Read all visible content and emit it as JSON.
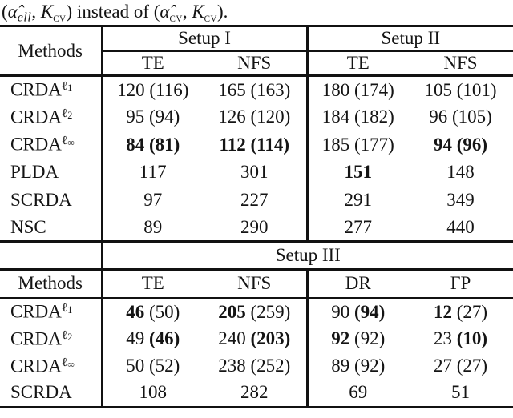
{
  "caption": {
    "segments": [
      {
        "t": "(",
        "s": "roman"
      },
      {
        "t": "α̂",
        "s": "it"
      },
      {
        "t": "ell",
        "s": "sub"
      },
      {
        "t": ", ",
        "s": "roman"
      },
      {
        "t": "K",
        "s": "it"
      },
      {
        "t": "CV",
        "s": "subsc"
      },
      {
        "t": ") instead of (",
        "s": "roman"
      },
      {
        "t": "α̂",
        "s": "it"
      },
      {
        "t": "CV",
        "s": "subsc"
      },
      {
        "t": ", ",
        "s": "roman"
      },
      {
        "t": "K",
        "s": "it"
      },
      {
        "t": "CV",
        "s": "subsc"
      },
      {
        "t": ").",
        "s": "roman"
      }
    ]
  },
  "table1": {
    "methods_label": "Methods",
    "groups": [
      {
        "label": "Setup I",
        "cols": [
          "TE",
          "NFS"
        ]
      },
      {
        "label": "Setup II",
        "cols": [
          "TE",
          "NFS"
        ]
      }
    ],
    "rows": [
      {
        "method": {
          "base": "CRDA",
          "sup": "ℓ",
          "supsub": "1"
        },
        "cells": [
          {
            "main": "120",
            "paren": "(116)",
            "mb": false,
            "pb": false
          },
          {
            "main": "165",
            "paren": "(163)",
            "mb": false,
            "pb": false
          },
          {
            "main": "180",
            "paren": "(174)",
            "mb": false,
            "pb": false
          },
          {
            "main": "105",
            "paren": "(101)",
            "mb": false,
            "pb": false
          }
        ]
      },
      {
        "method": {
          "base": "CRDA",
          "sup": "ℓ",
          "supsub": "2"
        },
        "cells": [
          {
            "main": "95",
            "paren": "(94)",
            "mb": false,
            "pb": false
          },
          {
            "main": "126",
            "paren": "(120)",
            "mb": false,
            "pb": false
          },
          {
            "main": "184",
            "paren": "(182)",
            "mb": false,
            "pb": false
          },
          {
            "main": "96",
            "paren": "(105)",
            "mb": false,
            "pb": false
          }
        ]
      },
      {
        "method": {
          "base": "CRDA",
          "sup": "ℓ",
          "supsub": "∞"
        },
        "cells": [
          {
            "main": "84",
            "paren": "(81)",
            "mb": true,
            "pb": true
          },
          {
            "main": "112",
            "paren": "(114)",
            "mb": true,
            "pb": true
          },
          {
            "main": "185",
            "paren": "(177)",
            "mb": false,
            "pb": false
          },
          {
            "main": "94",
            "paren": "(96)",
            "mb": true,
            "pb": true
          }
        ]
      },
      {
        "method": {
          "base": "PLDA"
        },
        "cells": [
          {
            "main": "117",
            "mb": false
          },
          {
            "main": "301",
            "mb": false
          },
          {
            "main": "151",
            "mb": true
          },
          {
            "main": "148",
            "mb": false
          }
        ]
      },
      {
        "method": {
          "base": "SCRDA"
        },
        "cells": [
          {
            "main": "97",
            "mb": false
          },
          {
            "main": "227",
            "mb": false
          },
          {
            "main": "291",
            "mb": false
          },
          {
            "main": "349",
            "mb": false
          }
        ]
      },
      {
        "method": {
          "base": "NSC"
        },
        "cells": [
          {
            "main": "89",
            "mb": false
          },
          {
            "main": "290",
            "mb": false
          },
          {
            "main": "277",
            "mb": false
          },
          {
            "main": "440",
            "mb": false
          }
        ]
      }
    ]
  },
  "table2": {
    "span_label": "Setup III",
    "methods_label": "Methods",
    "cols": [
      "TE",
      "NFS",
      "DR",
      "FP"
    ],
    "rows": [
      {
        "method": {
          "base": "CRDA",
          "sup": "ℓ",
          "supsub": "1"
        },
        "cells": [
          {
            "main": "46",
            "paren": "(50)",
            "mb": true,
            "pb": false
          },
          {
            "main": "205",
            "paren": "(259)",
            "mb": true,
            "pb": false
          },
          {
            "main": "90",
            "paren": "(94)",
            "mb": false,
            "pb": true
          },
          {
            "main": "12",
            "paren": "(27)",
            "mb": true,
            "pb": false
          }
        ]
      },
      {
        "method": {
          "base": "CRDA",
          "sup": "ℓ",
          "supsub": "2"
        },
        "cells": [
          {
            "main": "49",
            "paren": "(46)",
            "mb": false,
            "pb": true
          },
          {
            "main": "240",
            "paren": "(203)",
            "mb": false,
            "pb": true
          },
          {
            "main": "92",
            "paren": "(92)",
            "mb": true,
            "pb": false
          },
          {
            "main": "23",
            "paren": "(10)",
            "mb": false,
            "pb": true
          }
        ]
      },
      {
        "method": {
          "base": "CRDA",
          "sup": "ℓ",
          "supsub": "∞"
        },
        "cells": [
          {
            "main": "50",
            "paren": "(52)",
            "mb": false,
            "pb": false
          },
          {
            "main": "238",
            "paren": "(252)",
            "mb": false,
            "pb": false
          },
          {
            "main": "89",
            "paren": "(92)",
            "mb": false,
            "pb": false
          },
          {
            "main": "27",
            "paren": "(27)",
            "mb": false,
            "pb": false
          }
        ]
      },
      {
        "method": {
          "base": "SCRDA"
        },
        "cells": [
          {
            "main": "108",
            "mb": false
          },
          {
            "main": "282",
            "mb": false
          },
          {
            "main": "69",
            "mb": false
          },
          {
            "main": "51",
            "mb": false
          }
        ]
      }
    ]
  }
}
